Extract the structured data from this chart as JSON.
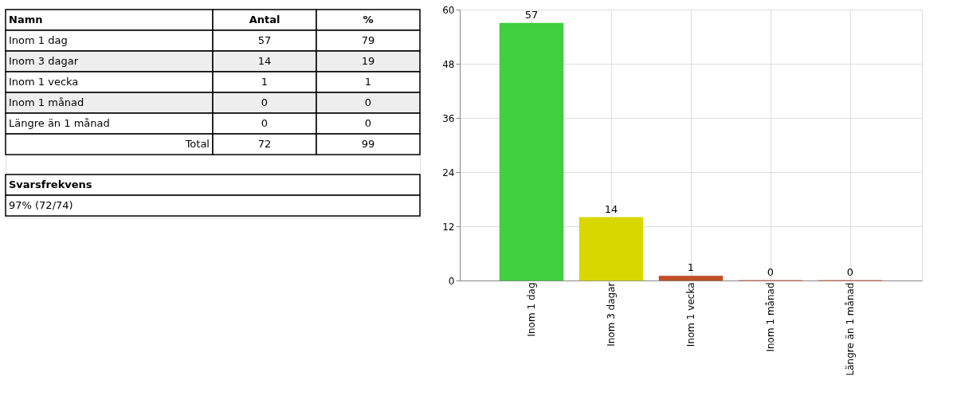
{
  "chart_data": [
    {
      "type": "other",
      "xlabel": "Namn",
      "categories": [
        "Inom 1 dag",
        "Inom 3 dagar",
        "Inom 1 vecka",
        "Inom 1 månad",
        "Längre än 1 månad",
        "Total"
      ],
      "series": [
        {
          "name": "Antal",
          "color": "#000000",
          "values": [
            57,
            14,
            1,
            0,
            0,
            72
          ]
        },
        {
          "name": "%",
          "color": "#000000",
          "values": [
            79,
            19,
            1,
            0,
            0,
            99
          ]
        }
      ],
      "annotations": [
        "Svarsfrekvens",
        "97% (72/74)"
      ],
      "data_labels": true
    },
    {
      "type": "bar",
      "categories": [
        "Inom 1 dag",
        "Inom 3 dagar",
        "Inom 1 vecka",
        "Inom 1 månad",
        "Längre än 1 månad"
      ],
      "values": [
        57,
        14,
        1,
        0,
        0
      ],
      "colors": [
        "#3fcf3f",
        "#d8d800",
        "#c0502a",
        "#c0502a",
        "#c0502a"
      ],
      "ylim": [
        0,
        60
      ],
      "yticks": [
        0,
        12,
        24,
        36,
        48,
        60
      ],
      "grid": true,
      "data_labels": true
    }
  ]
}
